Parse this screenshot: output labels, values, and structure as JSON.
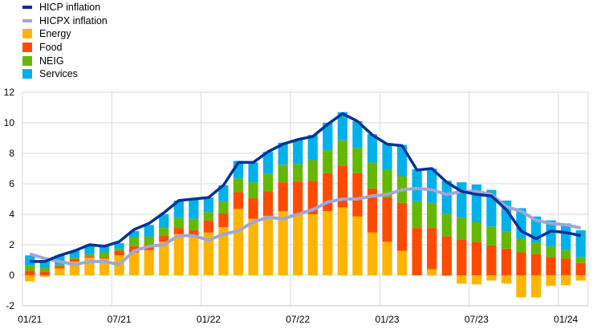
{
  "chart_data": {
    "type": "bar",
    "stacked": true,
    "categories": [
      "01/21",
      "02/21",
      "03/21",
      "04/21",
      "05/21",
      "06/21",
      "07/21",
      "08/21",
      "09/21",
      "10/21",
      "11/21",
      "12/21",
      "01/22",
      "02/22",
      "03/22",
      "04/22",
      "05/22",
      "06/22",
      "07/22",
      "08/22",
      "09/22",
      "10/22",
      "11/22",
      "12/22",
      "01/23",
      "02/23",
      "03/23",
      "04/23",
      "05/23",
      "06/23",
      "07/23",
      "08/23",
      "09/23",
      "10/23",
      "11/23",
      "12/23",
      "01/24",
      "02/24"
    ],
    "x_tick_labels": [
      "01/21",
      "07/21",
      "01/22",
      "07/22",
      "01/23",
      "07/23",
      "01/24"
    ],
    "y_ticks": [
      -2,
      0,
      2,
      4,
      6,
      8,
      10,
      12
    ],
    "ylim": [
      -2,
      12
    ],
    "grid": true,
    "legend_position": "top-left",
    "series": [
      {
        "name": "Energy",
        "kind": "bar",
        "color": "#ffb400",
        "values": [
          -0.4,
          -0.1,
          0.45,
          0.9,
          1.15,
          1.1,
          1.3,
          1.5,
          1.65,
          2.2,
          2.7,
          2.55,
          2.8,
          3.15,
          4.35,
          3.7,
          3.9,
          4.2,
          4.05,
          4.0,
          4.2,
          4.45,
          3.85,
          2.8,
          2.2,
          1.6,
          0.0,
          0.4,
          -0.05,
          -0.55,
          -0.6,
          -0.35,
          -0.55,
          -1.45,
          -1.45,
          -0.7,
          -0.65,
          -0.35
        ]
      },
      {
        "name": "Food",
        "kind": "bar",
        "color": "#ff4b00",
        "values": [
          0.3,
          0.25,
          0.15,
          0.15,
          0.1,
          0.1,
          0.3,
          0.4,
          0.35,
          0.4,
          0.4,
          0.4,
          0.8,
          0.9,
          1.1,
          1.35,
          1.6,
          1.9,
          2.1,
          2.2,
          2.5,
          2.75,
          2.85,
          2.9,
          2.9,
          3.15,
          3.1,
          2.7,
          2.55,
          2.35,
          2.2,
          1.95,
          1.75,
          1.5,
          1.4,
          1.2,
          1.1,
          0.8
        ]
      },
      {
        "name": "NEIG",
        "kind": "bar",
        "color": "#65b800",
        "values": [
          0.35,
          0.25,
          0.1,
          0.1,
          0.15,
          0.3,
          0.15,
          0.6,
          0.55,
          0.5,
          0.65,
          0.75,
          0.55,
          0.8,
          0.9,
          1.05,
          1.15,
          1.15,
          1.15,
          1.35,
          1.5,
          1.65,
          1.65,
          1.7,
          1.8,
          1.75,
          1.75,
          1.65,
          1.5,
          1.45,
          1.3,
          1.25,
          1.1,
          0.9,
          0.75,
          0.7,
          0.55,
          0.4
        ]
      },
      {
        "name": "Services",
        "kind": "bar",
        "color": "#00b1ea",
        "values": [
          0.65,
          0.5,
          0.6,
          0.45,
          0.6,
          0.4,
          0.35,
          0.4,
          0.75,
          0.9,
          1.15,
          1.3,
          0.95,
          1.05,
          1.15,
          1.3,
          1.45,
          1.45,
          1.6,
          1.65,
          1.8,
          1.85,
          1.75,
          1.85,
          1.75,
          2.05,
          2.1,
          2.25,
          2.15,
          2.3,
          2.45,
          2.4,
          2.05,
          2.0,
          1.7,
          1.7,
          1.75,
          1.75
        ]
      },
      {
        "name": "HICP inflation",
        "kind": "line",
        "color": "#003299",
        "values": [
          0.9,
          0.9,
          1.3,
          1.6,
          2.0,
          1.9,
          2.2,
          3.0,
          3.4,
          4.1,
          4.9,
          5.0,
          5.1,
          5.9,
          7.4,
          7.4,
          8.1,
          8.6,
          8.9,
          9.1,
          9.9,
          10.6,
          10.1,
          9.2,
          8.6,
          8.5,
          6.9,
          7.0,
          6.1,
          5.5,
          5.3,
          5.2,
          4.3,
          2.9,
          2.4,
          2.9,
          2.8,
          2.6
        ]
      },
      {
        "name": "HICPX inflation",
        "kind": "line",
        "color": "#a0a6d8",
        "values": [
          1.4,
          1.1,
          0.9,
          0.7,
          0.9,
          0.9,
          0.7,
          1.6,
          1.9,
          2.0,
          2.6,
          2.6,
          2.3,
          2.7,
          2.9,
          3.5,
          3.8,
          3.7,
          4.0,
          4.3,
          4.8,
          5.0,
          5.0,
          5.2,
          5.3,
          5.6,
          5.7,
          5.6,
          5.3,
          5.5,
          5.5,
          5.3,
          4.5,
          4.2,
          3.6,
          3.4,
          3.3,
          3.1
        ]
      }
    ]
  },
  "legend": {
    "items": [
      "HICP inflation",
      "HICPX inflation",
      "Energy",
      "Food",
      "NEIG",
      "Services"
    ]
  }
}
